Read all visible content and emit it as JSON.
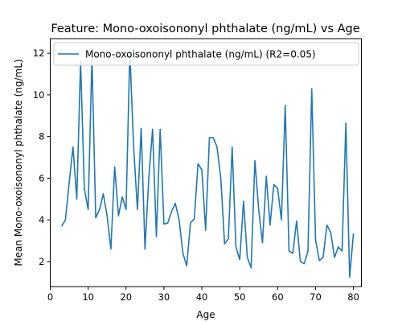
{
  "chart_data": {
    "type": "line",
    "title": "Feature: Mono-oxoisononyl phthalate (ng/mL) vs Age",
    "xlabel": "Age",
    "ylabel": "Mean Mono-oxoisononyl phthalate (ng/mL)",
    "xlim": [
      0,
      82.1
    ],
    "ylim": [
      0.8,
      12.7
    ],
    "xticks": [
      0,
      10,
      20,
      30,
      40,
      50,
      60,
      70,
      80
    ],
    "yticks": [
      2,
      4,
      6,
      8,
      10,
      12
    ],
    "grid": false,
    "legend_position": "top-left",
    "series": [
      {
        "name": "Mono-oxoisononyl phthalate (ng/mL) (R2=0.05)",
        "color": "#1f77b4",
        "x": [
          3,
          4,
          5,
          6,
          7,
          8,
          9,
          10,
          11,
          12,
          13,
          14,
          15,
          16,
          17,
          18,
          19,
          20,
          21,
          22,
          23,
          24,
          25,
          26,
          27,
          28,
          29,
          30,
          31,
          32,
          33,
          34,
          35,
          36,
          37,
          38,
          39,
          40,
          41,
          42,
          43,
          44,
          45,
          46,
          47,
          48,
          49,
          50,
          51,
          52,
          53,
          54,
          55,
          56,
          57,
          58,
          59,
          60,
          61,
          62,
          63,
          64,
          65,
          66,
          67,
          68,
          69,
          70,
          71,
          72,
          73,
          74,
          75,
          76,
          77,
          78,
          79,
          80
        ],
        "y": [
          3.7,
          4.0,
          5.8,
          7.5,
          5.0,
          11.6,
          5.5,
          4.5,
          11.8,
          4.1,
          4.5,
          5.25,
          4.2,
          2.6,
          6.55,
          4.2,
          5.1,
          4.5,
          12.1,
          7.5,
          4.5,
          8.4,
          2.6,
          6.0,
          8.35,
          3.2,
          8.35,
          3.8,
          3.85,
          4.4,
          4.8,
          4.0,
          2.4,
          1.8,
          3.85,
          4.05,
          6.7,
          6.4,
          3.5,
          7.95,
          7.95,
          7.5,
          6.0,
          2.85,
          3.1,
          7.5,
          2.7,
          2.1,
          4.9,
          2.2,
          1.7,
          6.85,
          4.5,
          2.9,
          6.1,
          3.75,
          5.7,
          5.5,
          4.0,
          9.5,
          2.5,
          2.4,
          3.95,
          2.0,
          1.9,
          2.5,
          10.3,
          3.05,
          2.05,
          2.2,
          3.75,
          3.4,
          2.2,
          2.7,
          2.5,
          8.65,
          1.25,
          3.35
        ]
      }
    ]
  }
}
